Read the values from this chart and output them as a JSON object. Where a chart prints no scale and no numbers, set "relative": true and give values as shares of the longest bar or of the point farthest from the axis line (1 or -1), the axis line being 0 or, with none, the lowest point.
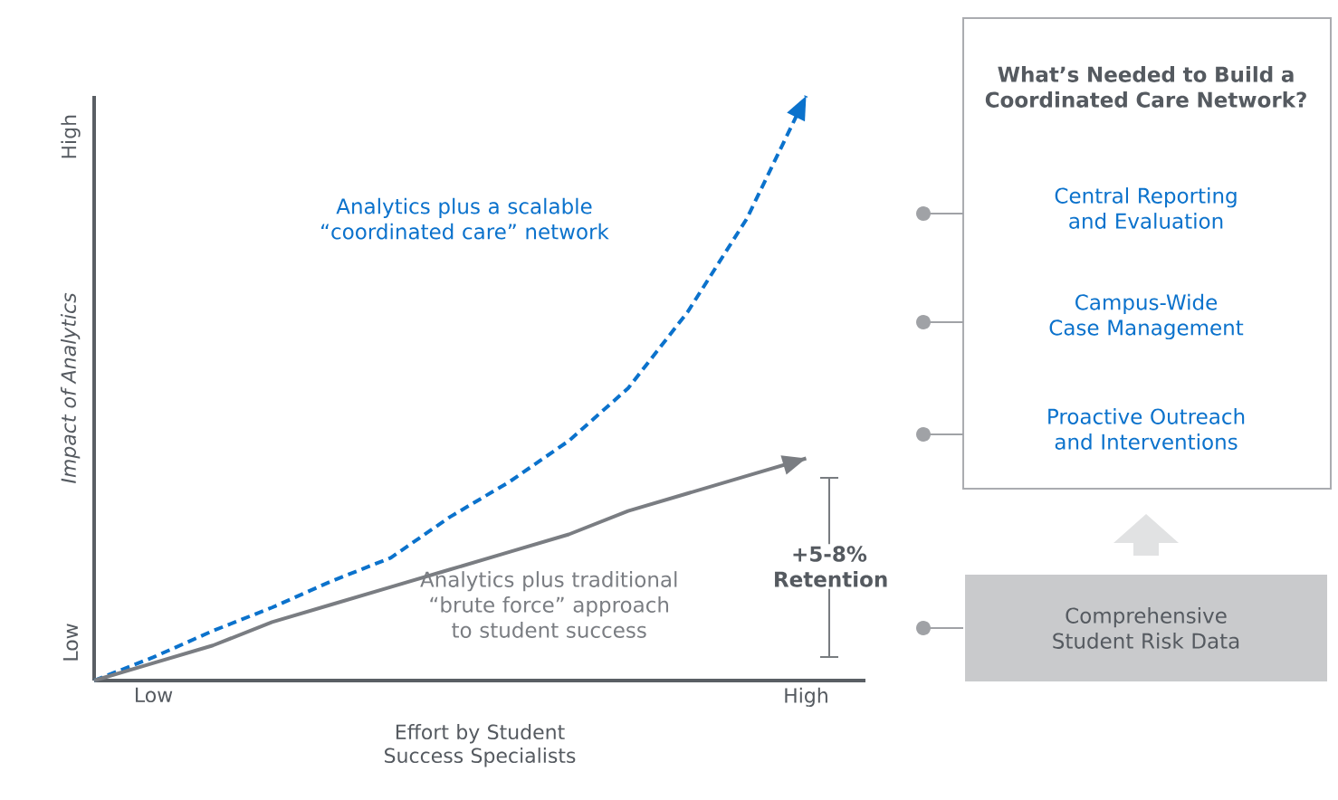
{
  "chart_data": [
    {
      "type": "line",
      "relative": true,
      "xlabel": "Effort by Student Success Specialists",
      "ylabel": "Impact of Analytics",
      "categories": [
        null,
        "Low",
        null,
        null,
        null,
        null,
        null,
        null,
        null,
        null,
        null,
        null,
        "High"
      ],
      "series": [
        {
          "name": "Analytics plus a scalable “coordinated care” network",
          "color": "#0b72cc",
          "line_style": "dashed",
          "values": [
            0,
            0.04,
            0.085,
            0.125,
            0.17,
            0.21,
            0.28,
            0.34,
            0.41,
            0.5,
            0.63,
            0.79,
            1.0
          ]
        },
        {
          "name": "Analytics plus traditional “brute force” approach to student success",
          "color": "#7a7d82",
          "line_style": "solid",
          "values": [
            0,
            0.03,
            0.06,
            0.1,
            0.13,
            0.16,
            0.19,
            0.22,
            0.25,
            0.29,
            0.32,
            0.35,
            0.38
          ]
        }
      ],
      "annotations": [
        "Low",
        "High",
        "+5-8% Retention"
      ]
    },
    {
      "type": "other",
      "title": "What’s Needed to Build a Coordinated Care Network?",
      "annotations": [
        "Central Reporting and Evaluation",
        "Campus-Wide Case Management",
        "Proactive Outreach and Interventions",
        "Comprehensive Student Risk Data"
      ]
    }
  ]
}
